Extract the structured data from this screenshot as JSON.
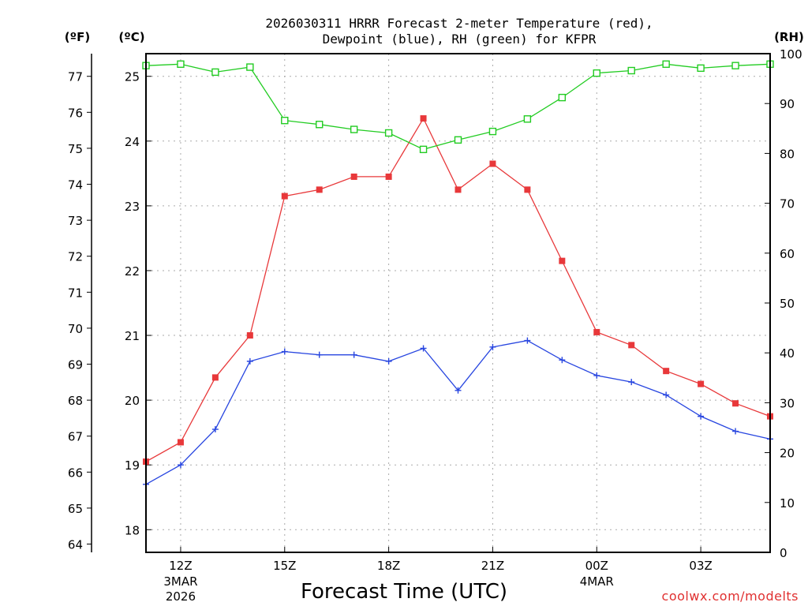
{
  "chart_data": {
    "type": "line",
    "title_lines": [
      "2026030311 HRRR Forecast 2-meter Temperature (red),",
      "Dewpoint (blue), RH (green) for KFPR"
    ],
    "xlabel": "Forecast Time (UTC)",
    "credit": "coolwx.com/modelts",
    "unit_labels": {
      "fahrenheit": "(ºF)",
      "celsius": "(ºC)",
      "rh": "(RH)"
    },
    "x_hours": [
      11,
      12,
      13,
      14,
      15,
      16,
      17,
      18,
      19,
      20,
      21,
      22,
      23,
      24,
      25,
      26,
      27,
      28,
      29
    ],
    "xlim": [
      11,
      29
    ],
    "x_ticks": [
      {
        "hour": 12,
        "label": "12Z",
        "sub": [
          "3MAR",
          "2026"
        ]
      },
      {
        "hour": 15,
        "label": "15Z",
        "sub": []
      },
      {
        "hour": 18,
        "label": "18Z",
        "sub": []
      },
      {
        "hour": 21,
        "label": "21Z",
        "sub": []
      },
      {
        "hour": 24,
        "label": "00Z",
        "sub": [
          "4MAR"
        ]
      },
      {
        "hour": 27,
        "label": "03Z",
        "sub": []
      }
    ],
    "celsius_axis": {
      "range": [
        17.65,
        25.35
      ],
      "ticks": [
        "18",
        "19",
        "20",
        "21",
        "22",
        "23",
        "24",
        "25"
      ]
    },
    "fahrenheit_axis": {
      "ticks": [
        "64",
        "65",
        "66",
        "67",
        "68",
        "69",
        "70",
        "71",
        "72",
        "73",
        "74",
        "75",
        "76",
        "77"
      ]
    },
    "rh_axis": {
      "range": [
        0,
        100
      ],
      "ticks": [
        "0",
        "10",
        "20",
        "30",
        "40",
        "50",
        "60",
        "70",
        "80",
        "90",
        "100"
      ]
    },
    "series": [
      {
        "name": "Temperature",
        "units": "C",
        "color": "#e8383a",
        "marker": "filled-square",
        "values": [
          19.05,
          19.35,
          20.35,
          21.0,
          23.15,
          23.25,
          23.45,
          23.45,
          24.35,
          23.25,
          23.65,
          23.25,
          22.15,
          21.05,
          20.85,
          20.45,
          20.25,
          19.95,
          19.75
        ]
      },
      {
        "name": "Dewpoint",
        "units": "C",
        "color": "#2846e0",
        "marker": "plus",
        "values": [
          18.7,
          19.0,
          19.55,
          20.6,
          20.75,
          20.7,
          20.7,
          20.6,
          20.8,
          20.15,
          20.82,
          20.92,
          20.62,
          20.38,
          20.28,
          20.08,
          19.75,
          19.52,
          19.4
        ]
      },
      {
        "name": "RH",
        "units": "%",
        "color": "#22cc22",
        "marker": "open-square",
        "values": [
          97.6,
          97.9,
          96.3,
          97.3,
          86.6,
          85.8,
          84.8,
          84.1,
          80.8,
          82.7,
          84.4,
          86.9,
          91.2,
          96.1,
          96.6,
          97.9,
          97.1,
          97.6,
          97.9
        ]
      }
    ],
    "grid": true
  }
}
